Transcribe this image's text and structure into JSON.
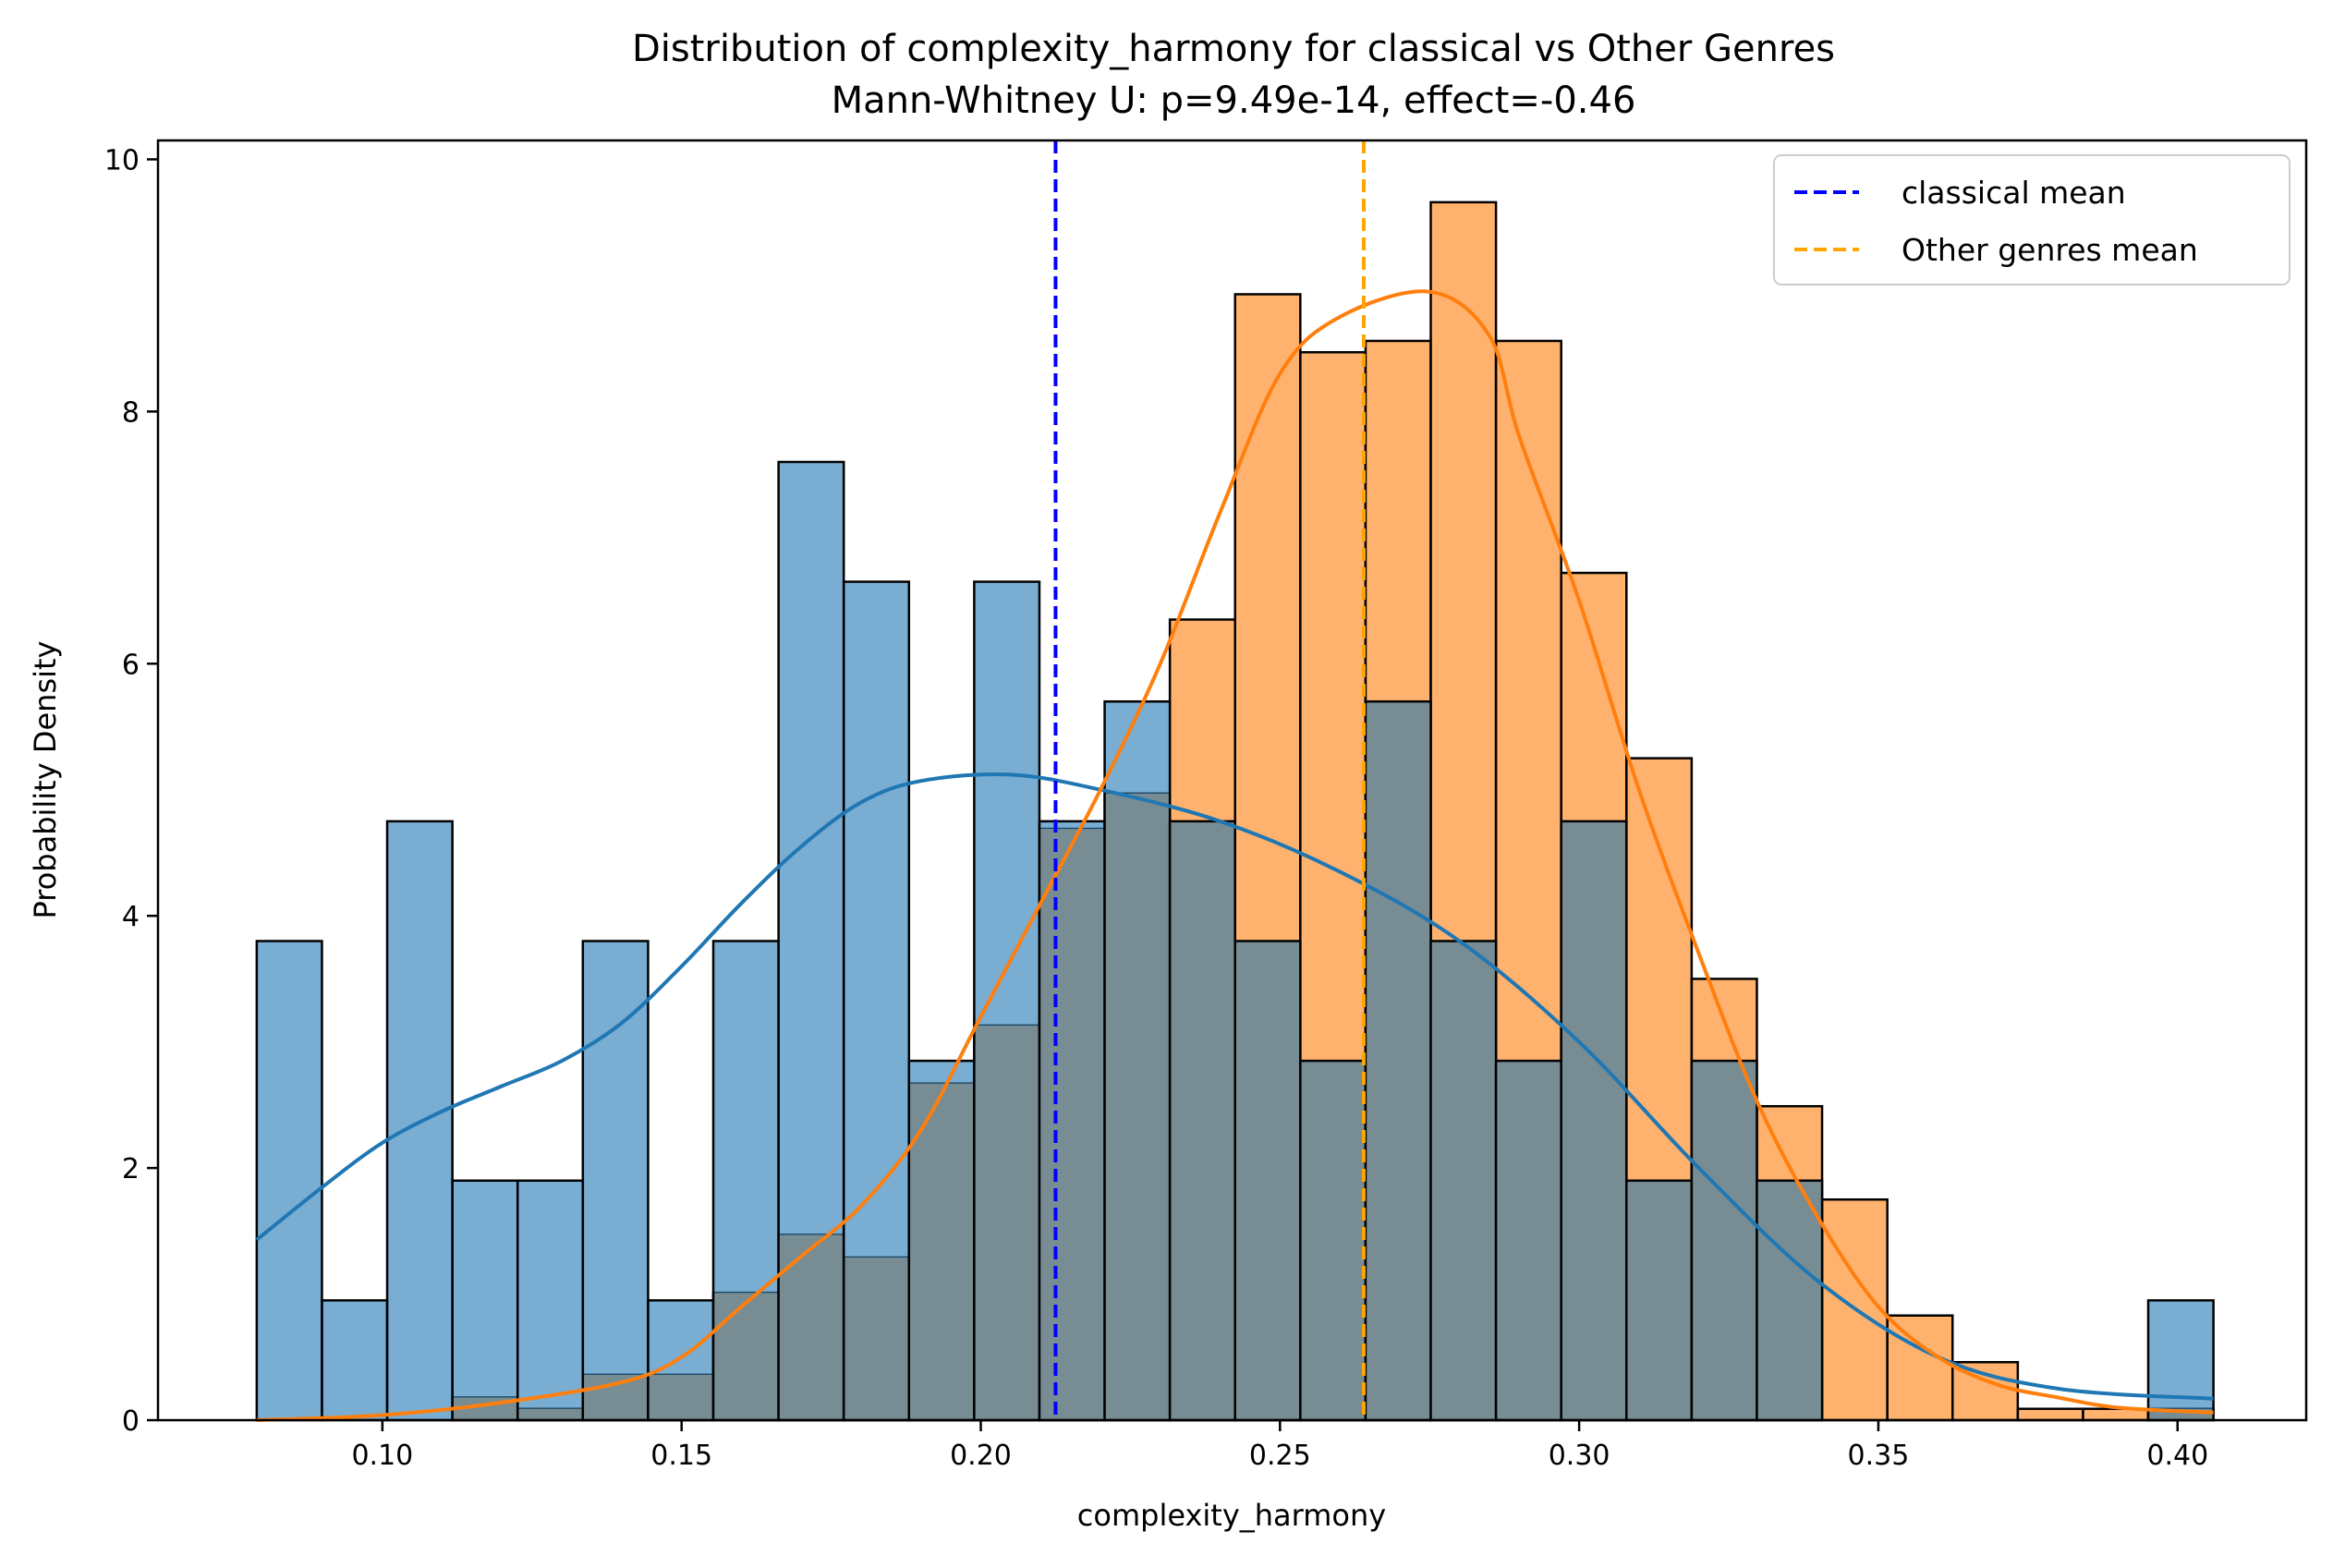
{
  "chart_data": {
    "type": "histogram",
    "title": "Distribution of complexity_harmony for classical vs Other Genres",
    "subtitle": "Mann-Whitney U: p=9.49e-14, effect=-0.46",
    "xlabel": "complexity_harmony",
    "ylabel": "Probability Density",
    "xlim": [
      0.0625,
      0.4215
    ],
    "ylim": [
      0,
      10.15
    ],
    "x_ticks": [
      "0.10",
      "0.15",
      "0.20",
      "0.25",
      "0.30",
      "0.35",
      "0.40"
    ],
    "y_ticks": [
      "0",
      "2",
      "4",
      "6",
      "8",
      "10"
    ],
    "legend_position": "top-right",
    "bin_edges": [
      0.079,
      0.0899,
      0.1008,
      0.1117,
      0.1226,
      0.1335,
      0.1444,
      0.1553,
      0.1662,
      0.1771,
      0.188,
      0.1989,
      0.2098,
      0.2207,
      0.2316,
      0.2425,
      0.2534,
      0.2643,
      0.2752,
      0.2861,
      0.297,
      0.3079,
      0.3188,
      0.3297,
      0.3406,
      0.3515,
      0.3624,
      0.3733,
      0.3842,
      0.3951,
      0.406
    ],
    "series": [
      {
        "id": "classical",
        "color": "#1f77b4",
        "densities": [
          3.8,
          0.95,
          4.75,
          1.9,
          1.9,
          3.8,
          0.95,
          3.8,
          7.6,
          6.65,
          2.85,
          6.65,
          4.75,
          5.7,
          4.75,
          3.8,
          2.85,
          5.7,
          3.8,
          2.85,
          4.75,
          1.9,
          2.85,
          1.9,
          0.0,
          0.0,
          0.0,
          0.0,
          0.0,
          0.95
        ],
        "kde": [
          [
            0.079,
            1.43
          ],
          [
            0.09,
            1.85
          ],
          [
            0.1,
            2.2
          ],
          [
            0.11,
            2.45
          ],
          [
            0.12,
            2.65
          ],
          [
            0.13,
            2.85
          ],
          [
            0.14,
            3.15
          ],
          [
            0.15,
            3.6
          ],
          [
            0.16,
            4.1
          ],
          [
            0.17,
            4.55
          ],
          [
            0.18,
            4.9
          ],
          [
            0.19,
            5.07
          ],
          [
            0.205,
            5.12
          ],
          [
            0.22,
            5.0
          ],
          [
            0.24,
            4.75
          ],
          [
            0.26,
            4.35
          ],
          [
            0.28,
            3.8
          ],
          [
            0.3,
            3.0
          ],
          [
            0.32,
            2.0
          ],
          [
            0.34,
            1.1
          ],
          [
            0.36,
            0.5
          ],
          [
            0.38,
            0.25
          ],
          [
            0.406,
            0.17
          ]
        ]
      },
      {
        "id": "other",
        "color": "#ff7f0e",
        "densities": [
          0.0,
          0.0,
          0.0,
          0.18,
          0.09,
          0.36,
          0.36,
          1.01,
          1.47,
          1.29,
          2.67,
          3.13,
          4.69,
          4.97,
          6.35,
          8.93,
          8.47,
          8.56,
          9.66,
          8.56,
          6.72,
          5.25,
          3.5,
          2.49,
          1.75,
          0.83,
          0.46,
          0.09,
          0.09,
          0.09
        ],
        "kde": [
          [
            0.079,
            0.0
          ],
          [
            0.1,
            0.04
          ],
          [
            0.12,
            0.14
          ],
          [
            0.14,
            0.3
          ],
          [
            0.15,
            0.5
          ],
          [
            0.16,
            0.9
          ],
          [
            0.17,
            1.3
          ],
          [
            0.18,
            1.7
          ],
          [
            0.19,
            2.3
          ],
          [
            0.2,
            3.2
          ],
          [
            0.21,
            4.1
          ],
          [
            0.22,
            5.0
          ],
          [
            0.23,
            6.0
          ],
          [
            0.24,
            7.2
          ],
          [
            0.25,
            8.3
          ],
          [
            0.26,
            8.75
          ],
          [
            0.275,
            8.95
          ],
          [
            0.285,
            8.6
          ],
          [
            0.29,
            7.8
          ],
          [
            0.3,
            6.5
          ],
          [
            0.31,
            5.0
          ],
          [
            0.32,
            3.7
          ],
          [
            0.33,
            2.5
          ],
          [
            0.34,
            1.6
          ],
          [
            0.35,
            0.9
          ],
          [
            0.36,
            0.5
          ],
          [
            0.37,
            0.28
          ],
          [
            0.38,
            0.18
          ],
          [
            0.39,
            0.1
          ],
          [
            0.406,
            0.06
          ]
        ]
      }
    ],
    "overlap_color": "#788c93",
    "mean_lines": [
      {
        "label": "classical mean",
        "x": 0.2125,
        "color": "#0000ff"
      },
      {
        "label": "Other genres mean",
        "x": 0.264,
        "color": "#ffa500"
      }
    ]
  }
}
